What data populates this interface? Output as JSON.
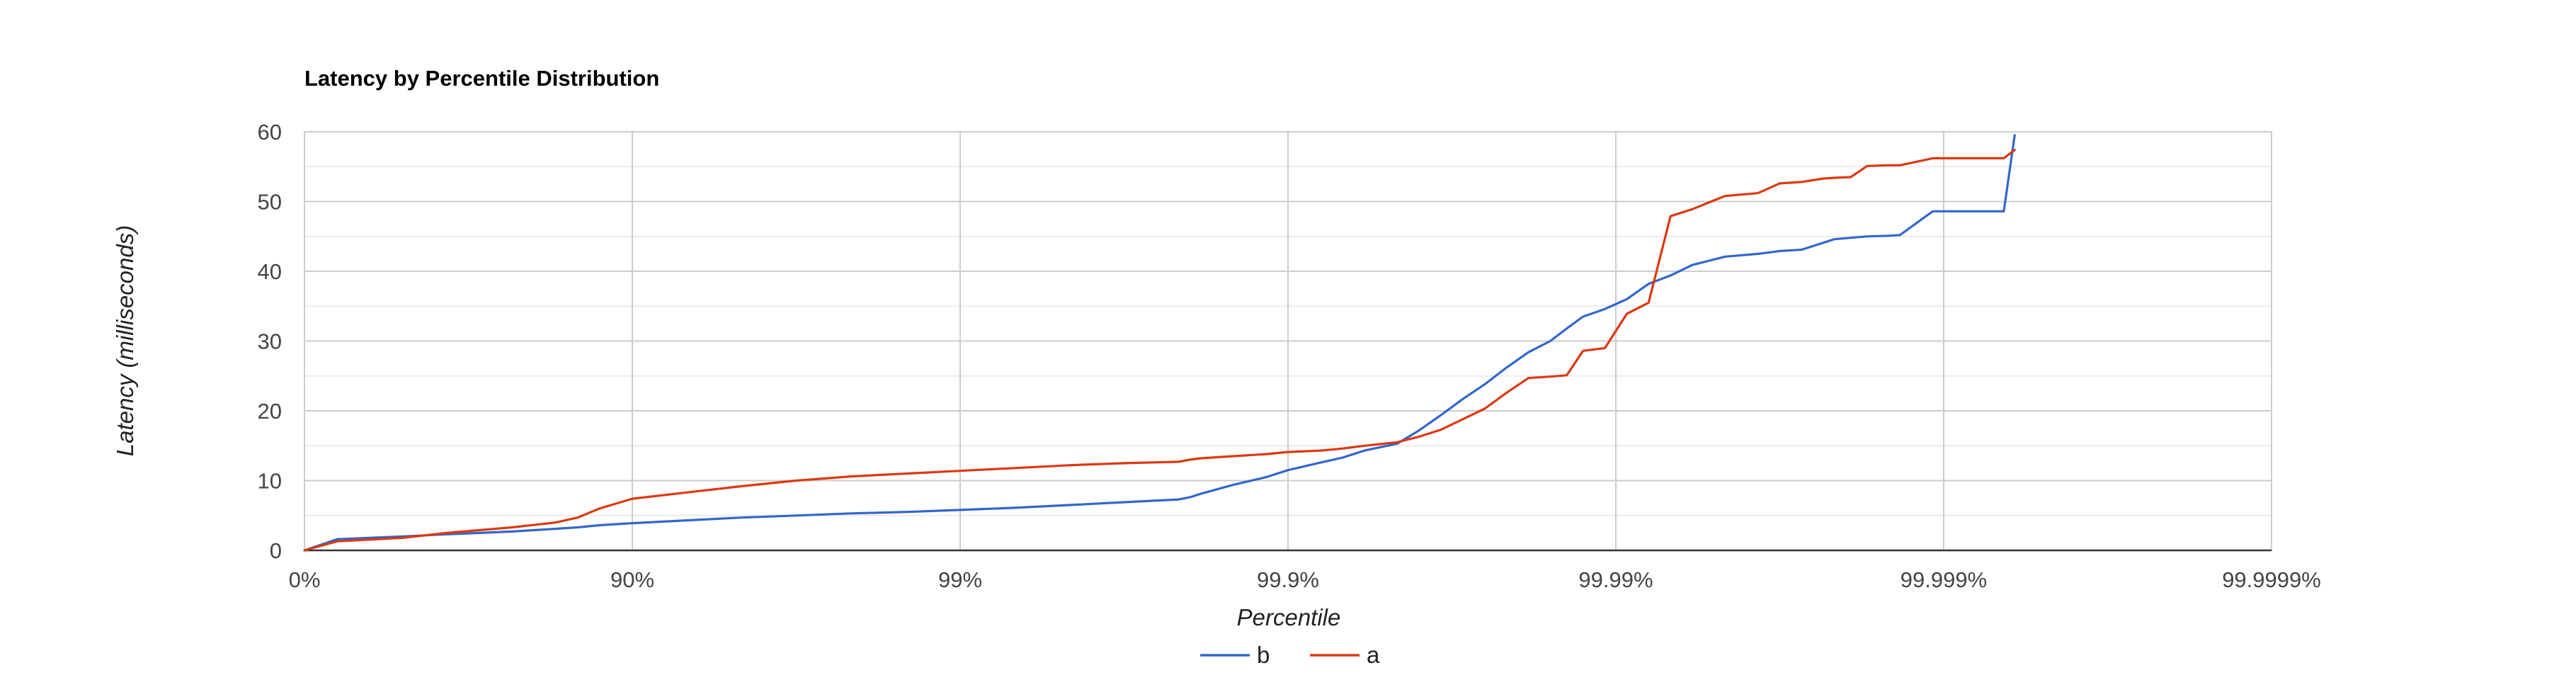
{
  "chart_data": {
    "type": "line",
    "title": "Latency by Percentile Distribution",
    "xlabel": "Percentile",
    "ylabel": "Latency (milliseconds)",
    "x_scale": "log-percentile",
    "x_ticks": [
      "0%",
      "90%",
      "99%",
      "99.9%",
      "99.99%",
      "99.999%",
      "99.9999%"
    ],
    "y_ticks": [
      "0",
      "10",
      "20",
      "30",
      "40",
      "50",
      "60"
    ],
    "ylim": [
      0,
      60
    ],
    "grid": true,
    "legend_position": "bottom",
    "series": [
      {
        "name": "b",
        "color": "#3366cc",
        "points": [
          [
            0.0,
            0.0
          ],
          [
            0.3,
            1.6
          ],
          [
            0.9,
            2.0
          ],
          [
            1.3,
            2.3
          ],
          [
            1.9,
            2.7
          ],
          [
            2.3,
            3.1
          ],
          [
            2.5,
            3.3
          ],
          [
            2.7,
            3.6
          ],
          [
            3.0,
            3.9
          ],
          [
            3.5,
            4.3
          ],
          [
            4.0,
            4.7
          ],
          [
            4.5,
            5.0
          ],
          [
            5.0,
            5.3
          ],
          [
            5.5,
            5.5
          ],
          [
            6.0,
            5.8
          ],
          [
            6.5,
            6.1
          ],
          [
            7.0,
            6.5
          ],
          [
            7.5,
            6.9
          ],
          [
            8.0,
            7.3
          ],
          [
            8.1,
            7.6
          ],
          [
            8.2,
            8.1
          ],
          [
            8.5,
            9.4
          ],
          [
            8.8,
            10.5
          ],
          [
            9.0,
            11.5
          ],
          [
            9.3,
            12.6
          ],
          [
            9.5,
            13.3
          ],
          [
            9.7,
            14.3
          ],
          [
            10.0,
            15.3
          ],
          [
            10.2,
            17.2
          ],
          [
            10.4,
            19.4
          ],
          [
            10.6,
            21.7
          ],
          [
            10.8,
            23.8
          ],
          [
            11.0,
            26.2
          ],
          [
            11.2,
            28.4
          ],
          [
            11.4,
            30.0
          ],
          [
            11.55,
            31.8
          ],
          [
            11.7,
            33.5
          ],
          [
            11.9,
            34.6
          ],
          [
            12.1,
            36.0
          ],
          [
            12.3,
            38.2
          ],
          [
            12.5,
            39.4
          ],
          [
            12.7,
            40.9
          ],
          [
            13.0,
            42.1
          ],
          [
            13.3,
            42.5
          ],
          [
            13.5,
            42.9
          ],
          [
            13.7,
            43.1
          ],
          [
            13.9,
            44.1
          ],
          [
            14.0,
            44.6
          ],
          [
            14.15,
            44.8
          ],
          [
            14.3,
            45.0
          ],
          [
            14.5,
            45.1
          ],
          [
            14.6,
            45.2
          ],
          [
            14.9,
            48.6
          ],
          [
            15.1,
            48.6
          ],
          [
            15.3,
            48.6
          ],
          [
            15.55,
            48.6
          ],
          [
            15.65,
            59.5
          ]
        ]
      },
      {
        "name": "a",
        "color": "#dc3912",
        "points": [
          [
            0.0,
            0.0
          ],
          [
            0.3,
            1.3
          ],
          [
            0.9,
            1.8
          ],
          [
            1.3,
            2.5
          ],
          [
            1.9,
            3.3
          ],
          [
            2.3,
            4.0
          ],
          [
            2.5,
            4.7
          ],
          [
            2.7,
            6.0
          ],
          [
            3.0,
            7.4
          ],
          [
            3.5,
            8.3
          ],
          [
            4.0,
            9.2
          ],
          [
            4.5,
            10.0
          ],
          [
            5.0,
            10.6
          ],
          [
            5.5,
            11.0
          ],
          [
            6.0,
            11.4
          ],
          [
            6.5,
            11.8
          ],
          [
            7.0,
            12.2
          ],
          [
            7.5,
            12.5
          ],
          [
            8.0,
            12.7
          ],
          [
            8.1,
            13.0
          ],
          [
            8.2,
            13.2
          ],
          [
            8.5,
            13.5
          ],
          [
            8.8,
            13.8
          ],
          [
            9.0,
            14.1
          ],
          [
            9.3,
            14.3
          ],
          [
            9.5,
            14.6
          ],
          [
            9.7,
            15.0
          ],
          [
            10.0,
            15.5
          ],
          [
            10.2,
            16.3
          ],
          [
            10.4,
            17.3
          ],
          [
            10.6,
            18.8
          ],
          [
            10.8,
            20.3
          ],
          [
            11.0,
            22.6
          ],
          [
            11.2,
            24.7
          ],
          [
            11.4,
            24.9
          ],
          [
            11.55,
            25.1
          ],
          [
            11.7,
            28.6
          ],
          [
            11.9,
            29.0
          ],
          [
            12.1,
            33.9
          ],
          [
            12.3,
            35.5
          ],
          [
            12.5,
            47.9
          ],
          [
            12.7,
            48.9
          ],
          [
            13.0,
            50.8
          ],
          [
            13.3,
            51.2
          ],
          [
            13.5,
            52.6
          ],
          [
            13.7,
            52.8
          ],
          [
            13.9,
            53.3
          ],
          [
            14.0,
            53.4
          ],
          [
            14.15,
            53.5
          ],
          [
            14.3,
            55.1
          ],
          [
            14.5,
            55.2
          ],
          [
            14.6,
            55.2
          ],
          [
            14.9,
            56.2
          ],
          [
            15.1,
            56.2
          ],
          [
            15.3,
            56.2
          ],
          [
            15.55,
            56.2
          ],
          [
            15.65,
            57.4
          ]
        ]
      }
    ]
  }
}
